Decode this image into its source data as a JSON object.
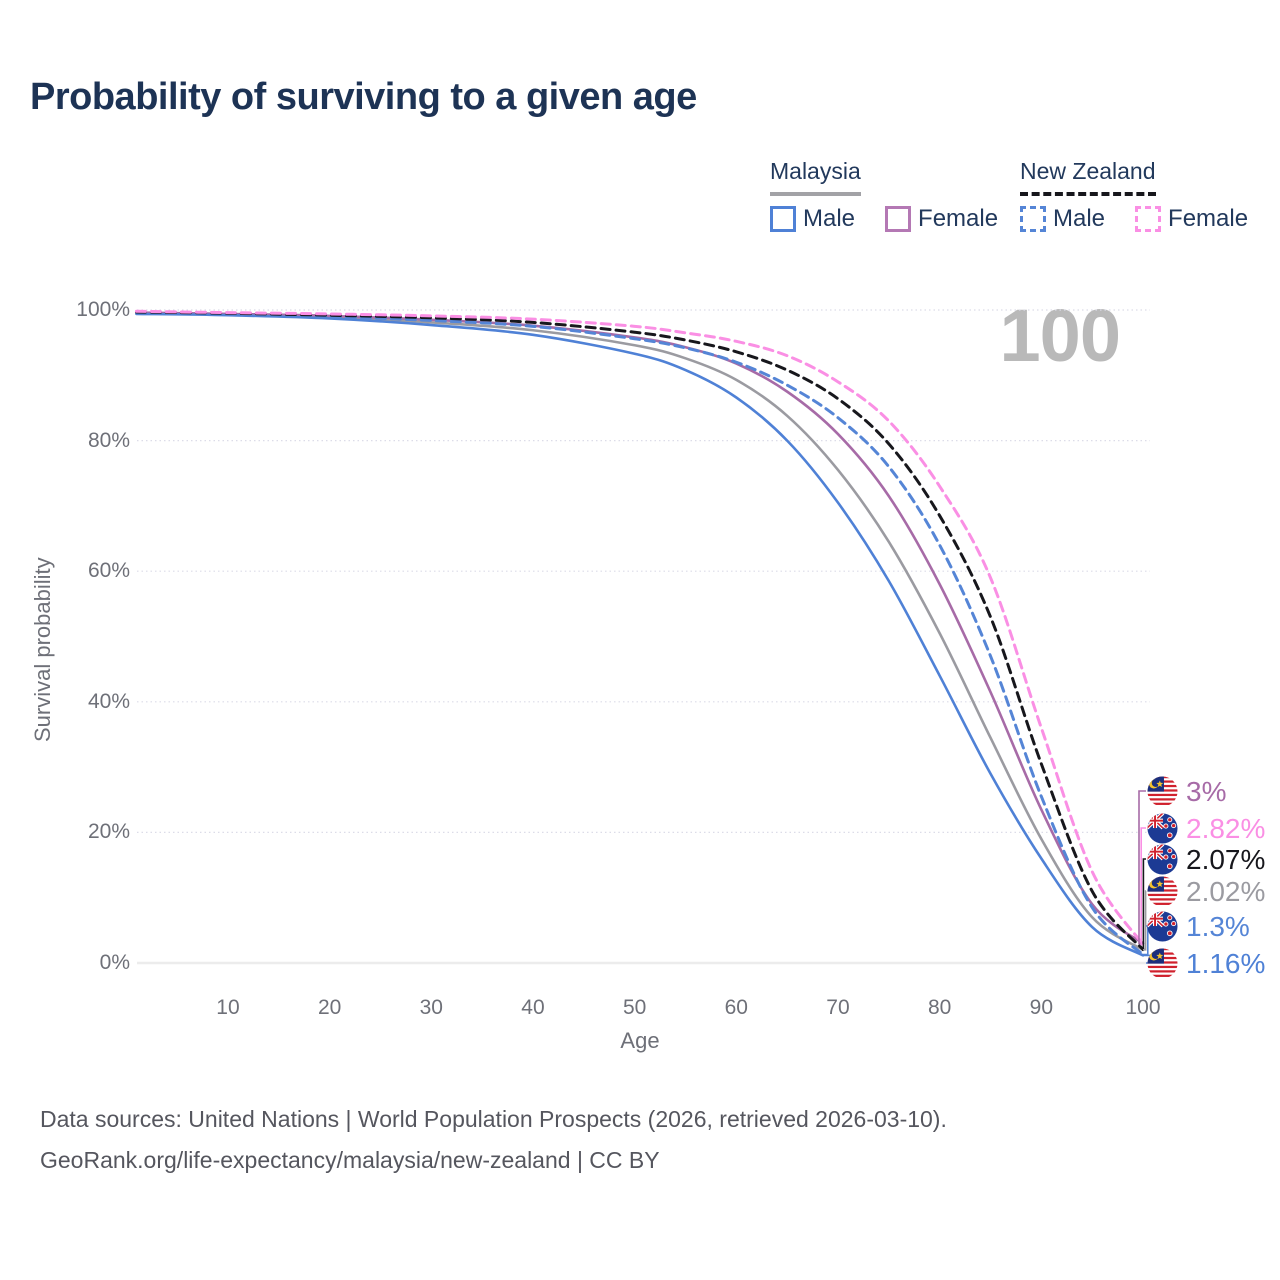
{
  "title": "Probability of surviving to a given age",
  "watermark": "100",
  "legend": {
    "groups": [
      {
        "name": "Malaysia",
        "line_style": "solid",
        "line_color": "#a2a2a6",
        "items": [
          {
            "label": "Male",
            "color": "#4f81d6",
            "style": "solid"
          },
          {
            "label": "Female",
            "color": "#b478b4",
            "style": "solid"
          }
        ]
      },
      {
        "name": "New Zealand",
        "line_style": "dashed",
        "line_color": "#17171c",
        "items": [
          {
            "label": "Male",
            "color": "#5585d6",
            "style": "dashed"
          },
          {
            "label": "Female",
            "color": "#fa8fe4",
            "style": "dashed"
          }
        ]
      }
    ]
  },
  "chart_data": {
    "type": "line",
    "title": "Probability of surviving to a given age",
    "xlabel": "Age",
    "ylabel": "Survival probability",
    "xlim": [
      1,
      100
    ],
    "ylim": [
      0,
      100
    ],
    "grid": "horizontal-dotted",
    "legend_position": "top-right",
    "x_ticks": [
      10,
      20,
      30,
      40,
      50,
      60,
      70,
      80,
      90,
      100
    ],
    "y_ticks": [
      0,
      20,
      40,
      60,
      80,
      100
    ],
    "y_tick_suffix": "%",
    "x": [
      1,
      10,
      20,
      30,
      40,
      50,
      55,
      60,
      65,
      70,
      75,
      80,
      85,
      90,
      95,
      100
    ],
    "series": [
      {
        "name": "Malaysia Both sexes",
        "country": "malaysia",
        "sex": "both",
        "color": "#9b9ba1",
        "dash": "solid",
        "end_label": "2.02%",
        "values": [
          99.5,
          99.3,
          98.9,
          98.1,
          96.9,
          94.6,
          92.6,
          89.3,
          83.8,
          75.5,
          64.5,
          50.5,
          34.5,
          19.0,
          7.0,
          2.02
        ]
      },
      {
        "name": "Malaysia Female",
        "country": "malaysia",
        "sex": "female",
        "color": "#a76ba7",
        "dash": "solid",
        "end_label": "3%",
        "values": [
          99.6,
          99.4,
          99.1,
          98.5,
          97.6,
          95.8,
          94.3,
          91.8,
          87.5,
          81.0,
          71.5,
          58.0,
          41.5,
          23.5,
          9.0,
          3.0
        ]
      },
      {
        "name": "Malaysia Male",
        "country": "malaysia",
        "sex": "male",
        "color": "#4f81d6",
        "dash": "solid",
        "end_label": "1.16%",
        "values": [
          99.4,
          99.2,
          98.7,
          97.7,
          96.2,
          93.3,
          90.8,
          86.6,
          80.0,
          70.5,
          58.5,
          44.0,
          29.0,
          16.0,
          5.5,
          1.16
        ]
      },
      {
        "name": "New Zealand Male",
        "country": "new-zealand",
        "sex": "male",
        "color": "#5585d6",
        "dash": "dashed",
        "end_label": "1.3%",
        "values": [
          99.6,
          99.4,
          99.0,
          98.4,
          97.5,
          95.6,
          94.2,
          92.0,
          88.5,
          83.5,
          76.0,
          64.0,
          47.0,
          25.5,
          8.5,
          1.3
        ]
      },
      {
        "name": "New Zealand Both sexes",
        "country": "new-zealand",
        "sex": "both",
        "color": "#17171c",
        "dash": "dashed",
        "end_label": "2.07%",
        "values": [
          99.7,
          99.5,
          99.2,
          98.8,
          98.1,
          96.6,
          95.4,
          93.6,
          90.8,
          86.4,
          79.5,
          68.5,
          53.0,
          30.5,
          11.0,
          2.07
        ]
      },
      {
        "name": "New Zealand Female",
        "country": "new-zealand",
        "sex": "female",
        "color": "#fa8fe4",
        "dash": "dashed",
        "end_label": "2.82%",
        "values": [
          99.8,
          99.6,
          99.4,
          99.1,
          98.6,
          97.5,
          96.5,
          95.2,
          93.0,
          89.0,
          83.0,
          73.0,
          59.0,
          36.0,
          14.0,
          2.82
        ]
      }
    ]
  },
  "footer": {
    "line1": "Data sources: United Nations | World Population Prospects (2026, retrieved 2026-03-10).",
    "line2": "GeoRank.org/life-expectancy/malaysia/new-zealand | CC BY"
  }
}
